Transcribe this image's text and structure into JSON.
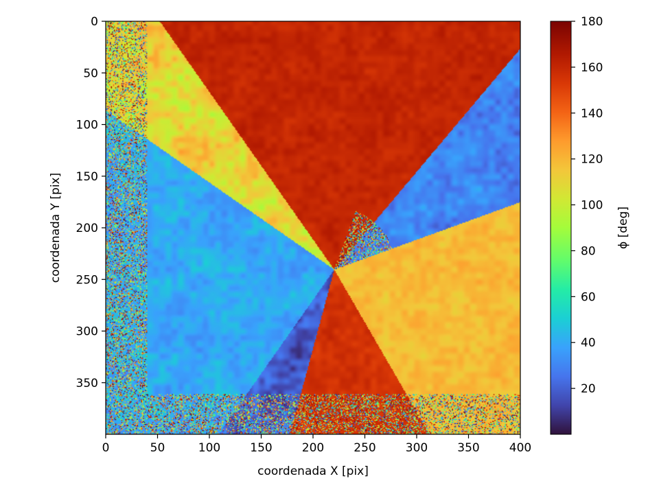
{
  "chart_data": {
    "type": "heatmap",
    "title": "",
    "xlabel": "coordenada X [pix]",
    "ylabel": "coordenada Y [pix]",
    "xlim": [
      0,
      400
    ],
    "ylim": [
      400,
      0
    ],
    "x_ticks": [
      0,
      50,
      100,
      150,
      200,
      250,
      300,
      350,
      400
    ],
    "y_ticks": [
      0,
      50,
      100,
      150,
      200,
      250,
      300,
      350
    ],
    "grid": false,
    "colormap": "turbo",
    "colorbar": {
      "label": "ϕ [deg]",
      "range": [
        0,
        180
      ],
      "ticks": [
        20,
        40,
        60,
        80,
        100,
        120,
        140,
        160,
        180
      ]
    },
    "field": {
      "description_center": [
        220,
        240
      ],
      "left_right_lobes_phi": 40,
      "upper_lower_lobes_phi": 160,
      "bands_phi": 120
    }
  }
}
